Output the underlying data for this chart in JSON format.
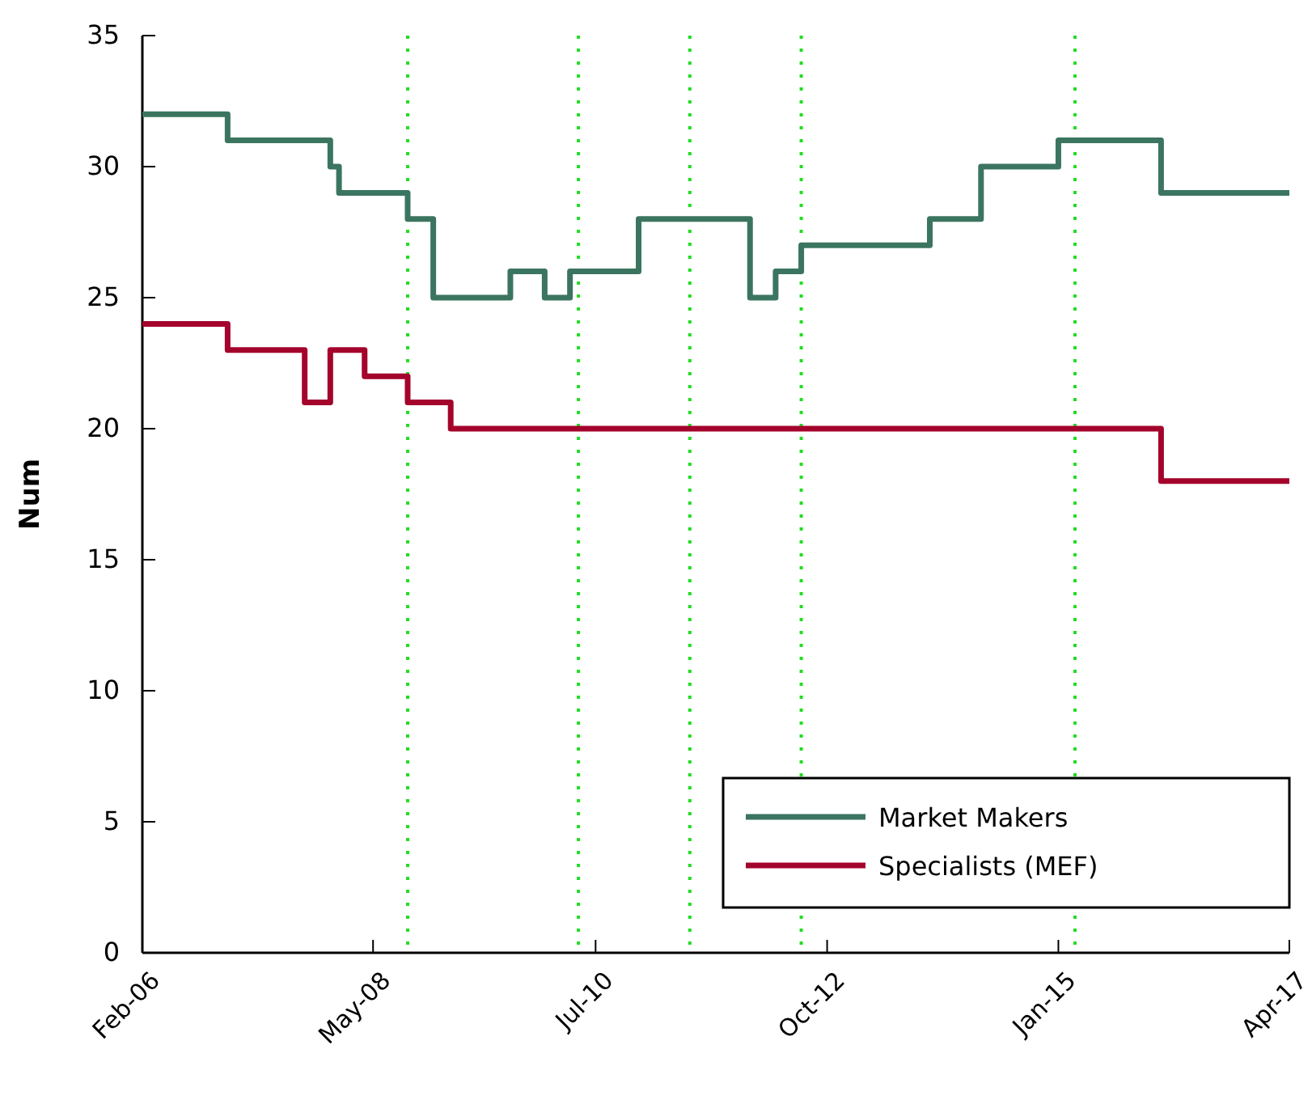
{
  "chart_data": {
    "type": "step",
    "ylabel": "Num",
    "xlim": [
      "2006-02",
      "2017-04"
    ],
    "xticks": [
      {
        "value": "2006-02",
        "label": "Feb-06"
      },
      {
        "value": "2008-05",
        "label": "May-08"
      },
      {
        "value": "2010-07",
        "label": "Jul-10"
      },
      {
        "value": "2012-10",
        "label": "Oct-12"
      },
      {
        "value": "2015-01",
        "label": "Jan-15"
      },
      {
        "value": "2017-04",
        "label": "Apr-17"
      }
    ],
    "ylim": [
      0,
      35
    ],
    "yticks": [
      0,
      5,
      10,
      15,
      20,
      25,
      30,
      35
    ],
    "grid": false,
    "legend": "bottom right",
    "line_style": "solid",
    "series": [
      {
        "name": "Market Makers",
        "color": "#3b7560",
        "x": [
          "2006-02",
          "2006-12",
          "2007-12",
          "2008-01",
          "2008-09",
          "2008-12",
          "2009-09",
          "2010-01",
          "2010-04",
          "2010-12",
          "2012-01",
          "2012-04",
          "2012-07",
          "2013-10",
          "2014-04",
          "2015-01",
          "2016-01",
          "2017-04"
        ],
        "values": [
          32,
          31,
          30,
          29,
          28,
          25,
          26,
          25,
          26,
          28,
          25,
          26,
          27,
          28,
          30,
          31,
          29,
          29
        ]
      },
      {
        "name": "Specialists (MEF)",
        "color": "#a4042c",
        "x": [
          "2006-02",
          "2006-12",
          "2007-09",
          "2007-12",
          "2008-04",
          "2008-09",
          "2009-02",
          "2016-01",
          "2017-04"
        ],
        "values": [
          24,
          23,
          21,
          23,
          22,
          21,
          20,
          18,
          18
        ]
      }
    ],
    "ref_lines": [
      {
        "axis": "x",
        "value": "2008-09",
        "color": "#22dd22",
        "line_style": "dotted"
      },
      {
        "axis": "x",
        "value": "2010-05",
        "color": "#22dd22",
        "line_style": "dotted"
      },
      {
        "axis": "x",
        "value": "2011-06",
        "color": "#22dd22",
        "line_style": "dotted"
      },
      {
        "axis": "x",
        "value": "2012-07",
        "color": "#22dd22",
        "line_style": "dotted"
      },
      {
        "axis": "x",
        "value": "2015-03",
        "color": "#22dd22",
        "line_style": "dotted"
      }
    ]
  }
}
